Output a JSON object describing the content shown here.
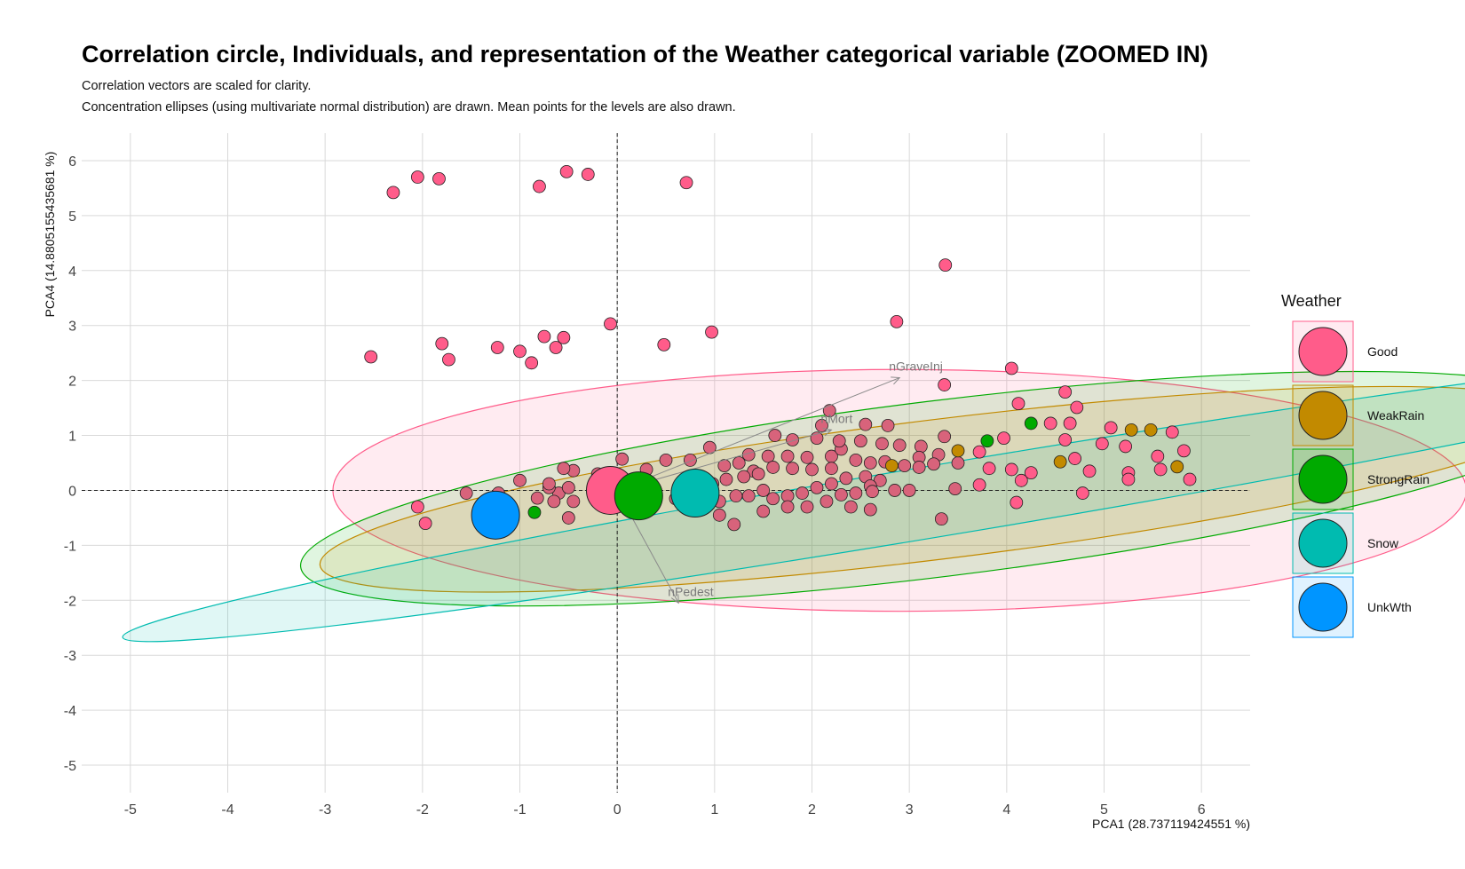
{
  "chart_data": {
    "type": "scatter",
    "title": "Correlation circle, Individuals, and representation of the Weather categorical variable (ZOOMED IN)",
    "subtitle_lines": [
      "Correlation vectors are scaled for clarity.",
      "Concentration ellipses (using multivariate normal distribution) are drawn. Mean points for the levels are also drawn."
    ],
    "xlabel": "PCA1 (28.737119424551 %)",
    "ylabel": "PCA4 (14.8805155435681 %)",
    "xlim": [
      -5.5,
      6.5
    ],
    "ylim": [
      -5.5,
      6.5
    ],
    "xticks": [
      -5,
      -4,
      -3,
      -2,
      -1,
      0,
      1,
      2,
      3,
      4,
      5,
      6
    ],
    "yticks": [
      -5,
      -4,
      -3,
      -2,
      -1,
      0,
      1,
      2,
      3,
      4,
      5,
      6
    ],
    "grid": true,
    "legend": {
      "title": "Weather",
      "position": "right",
      "items": [
        {
          "label": "Good",
          "color": "#FF5C8A"
        },
        {
          "label": "WeakRain",
          "color": "#C28A00"
        },
        {
          "label": "StrongRain",
          "color": "#00AA00"
        },
        {
          "label": "Snow",
          "color": "#00BBB0"
        },
        {
          "label": "UnkWth",
          "color": "#0095FF"
        }
      ]
    },
    "ellipses": [
      {
        "level": "Good",
        "center": [
          2.9,
          0.0
        ],
        "semi_axis_x": 5.82,
        "semi_axis_y": 2.2,
        "angle_deg": 0
      },
      {
        "level": "StrongRain",
        "center": [
          3.3,
          0.03
        ],
        "semi_axis_x": 6.6,
        "semi_axis_y": 1.6,
        "angle_deg": 7
      },
      {
        "level": "WeakRain",
        "center": [
          3.3,
          0.02
        ],
        "semi_axis_x": 6.4,
        "semi_axis_y": 1.27,
        "angle_deg": 7
      },
      {
        "level": "Snow",
        "center": [
          3.6,
          -0.1
        ],
        "semi_axis_x": 8.8,
        "semi_axis_y": 0.65,
        "angle_deg": 9.5
      }
    ],
    "mean_points": [
      {
        "level": "Good",
        "x": -0.07,
        "y": 0.0
      },
      {
        "level": "StrongRain",
        "x": 0.22,
        "y": -0.1
      },
      {
        "level": "Snow",
        "x": 0.8,
        "y": -0.05
      },
      {
        "level": "UnkWth",
        "x": -1.25,
        "y": -0.45
      }
    ],
    "vectors": [
      {
        "label": "nGraveInj",
        "x": 2.9,
        "y": 2.05
      },
      {
        "label": "nMort",
        "x": 2.2,
        "y": 1.1
      },
      {
        "label": "nPedest",
        "x": 0.63,
        "y": -2.05
      }
    ],
    "points": [
      {
        "x": -2.3,
        "y": 5.42,
        "level": "Good"
      },
      {
        "x": -2.05,
        "y": 5.7,
        "level": "Good"
      },
      {
        "x": -1.83,
        "y": 5.67,
        "level": "Good"
      },
      {
        "x": -0.8,
        "y": 5.53,
        "level": "Good"
      },
      {
        "x": -0.52,
        "y": 5.8,
        "level": "Good"
      },
      {
        "x": -0.3,
        "y": 5.75,
        "level": "Good"
      },
      {
        "x": 0.71,
        "y": 5.6,
        "level": "Good"
      },
      {
        "x": 3.37,
        "y": 4.1,
        "level": "Good"
      },
      {
        "x": -2.53,
        "y": 2.43,
        "level": "Good"
      },
      {
        "x": -1.8,
        "y": 2.67,
        "level": "Good"
      },
      {
        "x": -1.73,
        "y": 2.38,
        "level": "Good"
      },
      {
        "x": -1.23,
        "y": 2.6,
        "level": "Good"
      },
      {
        "x": -1.0,
        "y": 2.53,
        "level": "Good"
      },
      {
        "x": -0.88,
        "y": 2.32,
        "level": "Good"
      },
      {
        "x": -0.75,
        "y": 2.8,
        "level": "Good"
      },
      {
        "x": -0.63,
        "y": 2.6,
        "level": "Good"
      },
      {
        "x": -0.55,
        "y": 2.78,
        "level": "Good"
      },
      {
        "x": -0.07,
        "y": 3.03,
        "level": "Good"
      },
      {
        "x": 0.48,
        "y": 2.65,
        "level": "Good"
      },
      {
        "x": 0.97,
        "y": 2.88,
        "level": "Good"
      },
      {
        "x": 2.87,
        "y": 3.07,
        "level": "Good"
      },
      {
        "x": 3.36,
        "y": 1.92,
        "level": "Good"
      },
      {
        "x": 4.05,
        "y": 2.22,
        "level": "Good"
      },
      {
        "x": 4.12,
        "y": 1.58,
        "level": "Good"
      },
      {
        "x": 4.6,
        "y": 1.79,
        "level": "Good"
      },
      {
        "x": 4.72,
        "y": 1.51,
        "level": "Good"
      },
      {
        "x": 4.45,
        "y": 1.22,
        "level": "Good"
      },
      {
        "x": 4.65,
        "y": 1.22,
        "level": "Good"
      },
      {
        "x": 4.6,
        "y": 0.92,
        "level": "Good"
      },
      {
        "x": 5.07,
        "y": 1.14,
        "level": "Good"
      },
      {
        "x": 4.98,
        "y": 0.85,
        "level": "Good"
      },
      {
        "x": 5.22,
        "y": 0.8,
        "level": "Good"
      },
      {
        "x": 5.7,
        "y": 1.06,
        "level": "Good"
      },
      {
        "x": 5.82,
        "y": 0.72,
        "level": "Good"
      },
      {
        "x": 5.55,
        "y": 0.62,
        "level": "Good"
      },
      {
        "x": 5.58,
        "y": 0.38,
        "level": "Good"
      },
      {
        "x": 5.88,
        "y": 0.2,
        "level": "Good"
      },
      {
        "x": 5.25,
        "y": 0.32,
        "level": "Good"
      },
      {
        "x": 5.25,
        "y": 0.2,
        "level": "Good"
      },
      {
        "x": 4.85,
        "y": 0.35,
        "level": "Good"
      },
      {
        "x": 4.7,
        "y": 0.58,
        "level": "Good"
      },
      {
        "x": 4.78,
        "y": -0.05,
        "level": "Good"
      },
      {
        "x": 4.25,
        "y": 0.32,
        "level": "Good"
      },
      {
        "x": 4.15,
        "y": 0.18,
        "level": "Good"
      },
      {
        "x": 4.05,
        "y": 0.38,
        "level": "Good"
      },
      {
        "x": 4.1,
        "y": -0.22,
        "level": "Good"
      },
      {
        "x": 3.97,
        "y": 0.95,
        "level": "Good"
      },
      {
        "x": 3.82,
        "y": 0.4,
        "level": "Good"
      },
      {
        "x": 3.72,
        "y": 0.1,
        "level": "Good"
      },
      {
        "x": 3.72,
        "y": 0.7,
        "level": "Good"
      },
      {
        "x": 3.5,
        "y": 0.5,
        "level": "Good"
      },
      {
        "x": 3.47,
        "y": 0.03,
        "level": "Good"
      },
      {
        "x": 3.33,
        "y": -0.52,
        "level": "Good"
      },
      {
        "x": 3.36,
        "y": 0.98,
        "level": "Good"
      },
      {
        "x": 2.1,
        "y": 1.18,
        "level": "Good"
      },
      {
        "x": 2.18,
        "y": 1.45,
        "level": "Good"
      },
      {
        "x": 1.62,
        "y": 1.0,
        "level": "Good"
      },
      {
        "x": 0.95,
        "y": 0.78,
        "level": "Good"
      },
      {
        "x": 0.05,
        "y": 0.57,
        "level": "Good"
      },
      {
        "x": -0.6,
        "y": -0.05,
        "level": "Good"
      },
      {
        "x": -1.22,
        "y": -0.05,
        "level": "Good"
      },
      {
        "x": -2.05,
        "y": -0.3,
        "level": "Good"
      },
      {
        "x": -1.97,
        "y": -0.6,
        "level": "Good"
      },
      {
        "x": -0.45,
        "y": 0.36,
        "level": "Good"
      },
      {
        "x": -0.55,
        "y": 0.4,
        "level": "Good"
      },
      {
        "x": -0.5,
        "y": -0.5,
        "level": "Good"
      },
      {
        "x": -0.82,
        "y": -0.14,
        "level": "Good"
      },
      {
        "x": -0.7,
        "y": 0.05,
        "level": "Good"
      },
      {
        "x": -0.5,
        "y": 0.05,
        "level": "Good"
      },
      {
        "x": -0.45,
        "y": -0.2,
        "level": "Good"
      },
      {
        "x": -0.65,
        "y": -0.2,
        "level": "Good"
      },
      {
        "x": -1.0,
        "y": 0.18,
        "level": "Good"
      },
      {
        "x": -0.7,
        "y": 0.12,
        "level": "Good"
      },
      {
        "x": -1.55,
        "y": -0.05,
        "level": "Good"
      },
      {
        "x": -0.2,
        "y": 0.3,
        "level": "Good"
      },
      {
        "x": 0.3,
        "y": 0.38,
        "level": "Good"
      },
      {
        "x": 0.5,
        "y": 0.55,
        "level": "Good"
      },
      {
        "x": 0.75,
        "y": 0.55,
        "level": "Good"
      },
      {
        "x": 0.6,
        "y": -0.15,
        "level": "Good"
      },
      {
        "x": 1.1,
        "y": 0.45,
        "level": "Good"
      },
      {
        "x": 1.25,
        "y": 0.5,
        "level": "Good"
      },
      {
        "x": 1.35,
        "y": 0.65,
        "level": "Good"
      },
      {
        "x": 1.4,
        "y": 0.35,
        "level": "Good"
      },
      {
        "x": 1.55,
        "y": 0.62,
        "level": "Good"
      },
      {
        "x": 1.75,
        "y": 0.62,
        "level": "Good"
      },
      {
        "x": 1.95,
        "y": 0.6,
        "level": "Good"
      },
      {
        "x": 2.2,
        "y": 0.62,
        "level": "Good"
      },
      {
        "x": 2.3,
        "y": 0.75,
        "level": "Good"
      },
      {
        "x": 2.5,
        "y": 0.9,
        "level": "Good"
      },
      {
        "x": 2.72,
        "y": 0.85,
        "level": "Good"
      },
      {
        "x": 2.9,
        "y": 0.82,
        "level": "Good"
      },
      {
        "x": 3.12,
        "y": 0.8,
        "level": "Good"
      },
      {
        "x": 3.1,
        "y": 0.6,
        "level": "Good"
      },
      {
        "x": 3.3,
        "y": 0.65,
        "level": "Good"
      },
      {
        "x": 3.25,
        "y": 0.48,
        "level": "Good"
      },
      {
        "x": 3.1,
        "y": 0.42,
        "level": "Good"
      },
      {
        "x": 2.95,
        "y": 0.45,
        "level": "Good"
      },
      {
        "x": 2.75,
        "y": 0.52,
        "level": "Good"
      },
      {
        "x": 2.6,
        "y": 0.5,
        "level": "Good"
      },
      {
        "x": 2.45,
        "y": 0.55,
        "level": "Good"
      },
      {
        "x": 2.2,
        "y": 0.4,
        "level": "Good"
      },
      {
        "x": 2.0,
        "y": 0.38,
        "level": "Good"
      },
      {
        "x": 1.8,
        "y": 0.4,
        "level": "Good"
      },
      {
        "x": 1.6,
        "y": 0.42,
        "level": "Good"
      },
      {
        "x": 1.45,
        "y": 0.3,
        "level": "Good"
      },
      {
        "x": 1.3,
        "y": 0.25,
        "level": "Good"
      },
      {
        "x": 1.12,
        "y": 0.2,
        "level": "Good"
      },
      {
        "x": 0.98,
        "y": 0.12,
        "level": "Good"
      },
      {
        "x": 0.9,
        "y": -0.05,
        "level": "Good"
      },
      {
        "x": 1.05,
        "y": -0.2,
        "level": "Good"
      },
      {
        "x": 1.22,
        "y": -0.1,
        "level": "Good"
      },
      {
        "x": 1.35,
        "y": -0.1,
        "level": "Good"
      },
      {
        "x": 1.5,
        "y": 0.0,
        "level": "Good"
      },
      {
        "x": 1.6,
        "y": -0.15,
        "level": "Good"
      },
      {
        "x": 1.75,
        "y": -0.1,
        "level": "Good"
      },
      {
        "x": 1.9,
        "y": -0.05,
        "level": "Good"
      },
      {
        "x": 2.05,
        "y": 0.05,
        "level": "Good"
      },
      {
        "x": 2.2,
        "y": 0.12,
        "level": "Good"
      },
      {
        "x": 2.35,
        "y": 0.22,
        "level": "Good"
      },
      {
        "x": 2.55,
        "y": 0.25,
        "level": "Good"
      },
      {
        "x": 2.7,
        "y": 0.18,
        "level": "Good"
      },
      {
        "x": 2.85,
        "y": 0.0,
        "level": "Good"
      },
      {
        "x": 2.6,
        "y": 0.08,
        "level": "Good"
      },
      {
        "x": 2.45,
        "y": -0.05,
        "level": "Good"
      },
      {
        "x": 2.3,
        "y": -0.08,
        "level": "Good"
      },
      {
        "x": 2.15,
        "y": -0.2,
        "level": "Good"
      },
      {
        "x": 1.95,
        "y": -0.3,
        "level": "Good"
      },
      {
        "x": 1.75,
        "y": -0.3,
        "level": "Good"
      },
      {
        "x": 1.5,
        "y": -0.38,
        "level": "Good"
      },
      {
        "x": 1.2,
        "y": -0.62,
        "level": "Good"
      },
      {
        "x": 1.05,
        "y": -0.45,
        "level": "Good"
      },
      {
        "x": 1.8,
        "y": 0.92,
        "level": "Good"
      },
      {
        "x": 2.05,
        "y": 0.95,
        "level": "Good"
      },
      {
        "x": 2.28,
        "y": 0.9,
        "level": "Good"
      },
      {
        "x": 2.55,
        "y": 1.2,
        "level": "Good"
      },
      {
        "x": 2.78,
        "y": 1.18,
        "level": "Good"
      },
      {
        "x": 2.6,
        "y": -0.35,
        "level": "Good"
      },
      {
        "x": 2.4,
        "y": -0.3,
        "level": "Good"
      },
      {
        "x": 3.0,
        "y": 0.0,
        "level": "Good"
      },
      {
        "x": 2.62,
        "y": -0.02,
        "level": "Good"
      },
      {
        "x": 3.5,
        "y": 0.72,
        "level": "WeakRain"
      },
      {
        "x": 2.82,
        "y": 0.45,
        "level": "WeakRain"
      },
      {
        "x": 4.55,
        "y": 0.52,
        "level": "WeakRain"
      },
      {
        "x": 5.28,
        "y": 1.1,
        "level": "WeakRain"
      },
      {
        "x": 5.48,
        "y": 1.1,
        "level": "WeakRain"
      },
      {
        "x": 5.75,
        "y": 0.43,
        "level": "WeakRain"
      },
      {
        "x": -0.85,
        "y": -0.4,
        "level": "StrongRain"
      },
      {
        "x": 3.8,
        "y": 0.9,
        "level": "StrongRain"
      },
      {
        "x": 4.25,
        "y": 1.22,
        "level": "StrongRain"
      }
    ]
  }
}
